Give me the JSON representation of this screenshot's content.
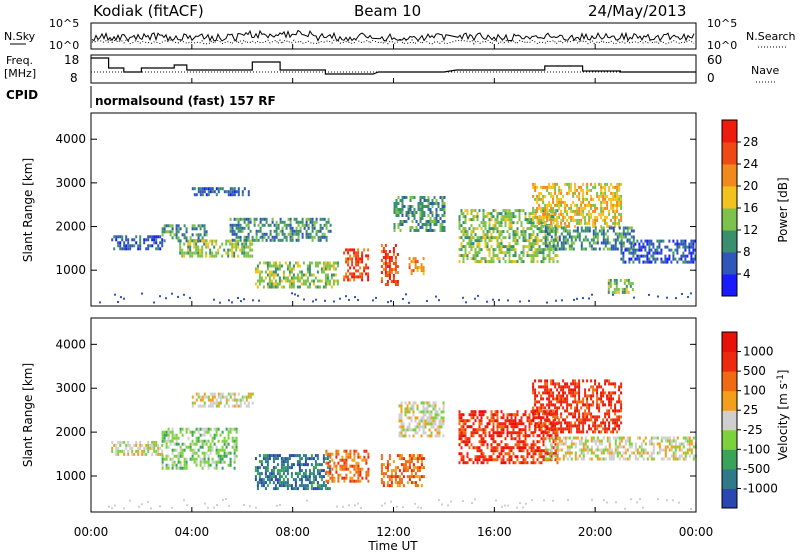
{
  "header": {
    "station": "Kodiak (fitACF)",
    "beam": "Beam 10",
    "date": "24/May/2013"
  },
  "nsky_panel": {
    "left_label": "N.Sky",
    "right_label": "N.Search",
    "left_ticks": [
      "10^5",
      "10^0"
    ],
    "right_ticks": [
      "10^5",
      "10^0"
    ]
  },
  "freq_panel": {
    "left_label_1": "Freq.",
    "left_label_2": "[MHz]",
    "right_label": "Nave",
    "left_ticks": [
      "18",
      "8"
    ],
    "right_ticks": [
      "60",
      "0"
    ]
  },
  "cpid": {
    "label": "CPID",
    "program": "normalsound (fast) 157 RF"
  },
  "x_axis": {
    "label": "Time UT",
    "ticks": [
      "00:00",
      "04:00",
      "08:00",
      "12:00",
      "16:00",
      "20:00",
      "00:00"
    ]
  },
  "chart_data": [
    {
      "type": "heatmap",
      "title": "Power",
      "quantity": "Power [dB]",
      "ylabel": "Slant Range [km]",
      "xlabel": "Time UT",
      "x_range_hours": [
        0,
        24
      ],
      "ylim": [
        180,
        4600
      ],
      "y_ticks": [
        1000,
        2000,
        3000,
        4000
      ],
      "colorbar_label": "Power [dB]",
      "colorbar_ticks": [
        "4",
        "8",
        "12",
        "16",
        "20",
        "24",
        "28"
      ],
      "colorbar_colors": [
        "#1a1aff",
        "#2f56b8",
        "#3a8f6e",
        "#7dc24a",
        "#f2c21f",
        "#f08a1c",
        "#ef4a14",
        "#ee1c0c"
      ],
      "echo_regions": [
        {
          "t0": 0.8,
          "t1": 2.8,
          "r0": 1500,
          "r1": 1800,
          "level": 1
        },
        {
          "t0": 2.8,
          "t1": 4.6,
          "r0": 1650,
          "r1": 2050,
          "level": 2
        },
        {
          "t0": 3.5,
          "t1": 6.4,
          "r0": 1300,
          "r1": 1700,
          "level": 3
        },
        {
          "t0": 5.5,
          "t1": 9.5,
          "r0": 1700,
          "r1": 2200,
          "level": 2
        },
        {
          "t0": 6.5,
          "t1": 9.8,
          "r0": 600,
          "r1": 1200,
          "level": 3
        },
        {
          "t0": 4.0,
          "t1": 6.3,
          "r0": 2700,
          "r1": 2900,
          "level": 1
        },
        {
          "t0": 10.0,
          "t1": 11.0,
          "r0": 800,
          "r1": 1500,
          "level": 6
        },
        {
          "t0": 11.5,
          "t1": 12.2,
          "r0": 700,
          "r1": 1600,
          "level": 6
        },
        {
          "t0": 12.6,
          "t1": 13.2,
          "r0": 900,
          "r1": 1300,
          "level": 5
        },
        {
          "t0": 12.0,
          "t1": 14.0,
          "r0": 1900,
          "r1": 2700,
          "level": 2
        },
        {
          "t0": 14.5,
          "t1": 18.5,
          "r0": 1200,
          "r1": 2400,
          "level": 3
        },
        {
          "t0": 17.5,
          "t1": 21.0,
          "r0": 2000,
          "r1": 3000,
          "level": 4
        },
        {
          "t0": 18.0,
          "t1": 21.5,
          "r0": 1500,
          "r1": 2000,
          "level": 2
        },
        {
          "t0": 21.0,
          "t1": 24.0,
          "r0": 1200,
          "r1": 1700,
          "level": 1
        },
        {
          "t0": 20.5,
          "t1": 21.5,
          "r0": 500,
          "r1": 800,
          "level": 3
        }
      ],
      "data_gaps_hours": [
        [
          11.2,
          11.4
        ],
        [
          14.1,
          14.5
        ]
      ]
    },
    {
      "type": "heatmap",
      "title": "Velocity",
      "quantity": "Velocity [m s^-1]",
      "ylabel": "Slant Range [km]",
      "xlabel": "Time UT",
      "x_range_hours": [
        0,
        24
      ],
      "ylim": [
        180,
        4600
      ],
      "y_ticks": [
        1000,
        2000,
        3000,
        4000
      ],
      "colorbar_label": "Velocity [m s^-1]",
      "colorbar_ticks": [
        "1000",
        "500",
        "100",
        "25",
        "-25",
        "-100",
        "-500",
        "-1000"
      ],
      "colorbar_colors": [
        "#2a46b0",
        "#2f7a8a",
        "#3aa35a",
        "#7cd23c",
        "#cfcfcf",
        "#f2a01c",
        "#f06a14",
        "#ee2a0e",
        "#e8120a"
      ],
      "echo_regions": [
        {
          "t0": 0.8,
          "t1": 2.8,
          "r0": 1500,
          "r1": 1800,
          "level": 4
        },
        {
          "t0": 2.8,
          "t1": 5.8,
          "r0": 1200,
          "r1": 2100,
          "level": 3
        },
        {
          "t0": 4.0,
          "t1": 6.4,
          "r0": 2600,
          "r1": 2900,
          "level": 4
        },
        {
          "t0": 6.5,
          "t1": 9.5,
          "r0": 700,
          "r1": 1500,
          "level": 1
        },
        {
          "t0": 9.3,
          "t1": 11.0,
          "r0": 900,
          "r1": 1600,
          "level": 6
        },
        {
          "t0": 11.5,
          "t1": 13.2,
          "r0": 800,
          "r1": 1500,
          "level": 6
        },
        {
          "t0": 12.2,
          "t1": 14.0,
          "r0": 1900,
          "r1": 2700,
          "level": 4
        },
        {
          "t0": 14.5,
          "t1": 18.5,
          "r0": 1300,
          "r1": 2500,
          "level": 7
        },
        {
          "t0": 17.5,
          "t1": 21.0,
          "r0": 2000,
          "r1": 3200,
          "level": 7
        },
        {
          "t0": 18.0,
          "t1": 24.0,
          "r0": 1400,
          "r1": 1900,
          "level": 4
        }
      ],
      "data_gaps_hours": [
        [
          11.2,
          11.4
        ],
        [
          14.1,
          14.5
        ]
      ]
    }
  ]
}
